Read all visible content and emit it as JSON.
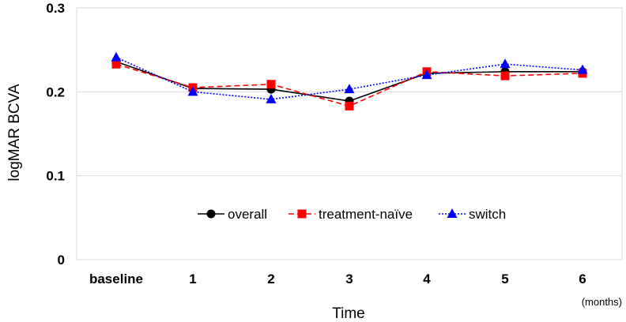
{
  "chart_data": {
    "type": "line",
    "categories": [
      "baseline",
      "1",
      "2",
      "3",
      "4",
      "5",
      "6"
    ],
    "series": [
      {
        "name": "overall",
        "values": [
          0.236,
          0.204,
          0.203,
          0.189,
          0.222,
          0.224,
          0.224
        ],
        "color": "#000000",
        "marker": "circle",
        "dash": "solid"
      },
      {
        "name": "treatment-naïve",
        "values": [
          0.233,
          0.205,
          0.209,
          0.183,
          0.224,
          0.219,
          0.222
        ],
        "color": "#ff0000",
        "marker": "square",
        "dash": "dashed"
      },
      {
        "name": "switch",
        "values": [
          0.241,
          0.2,
          0.191,
          0.203,
          0.22,
          0.233,
          0.226
        ],
        "color": "#0000ff",
        "marker": "triangle",
        "dash": "dotted"
      }
    ],
    "xlabel": "Time",
    "x_unit": "(months)",
    "ylabel": "logMAR  BCVA",
    "ylim": [
      0,
      0.3
    ],
    "yticks": [
      "0",
      "0.1",
      "0.2",
      "0.3"
    ],
    "grid": "horizontal",
    "legend_position": "inside-bottom-center"
  }
}
